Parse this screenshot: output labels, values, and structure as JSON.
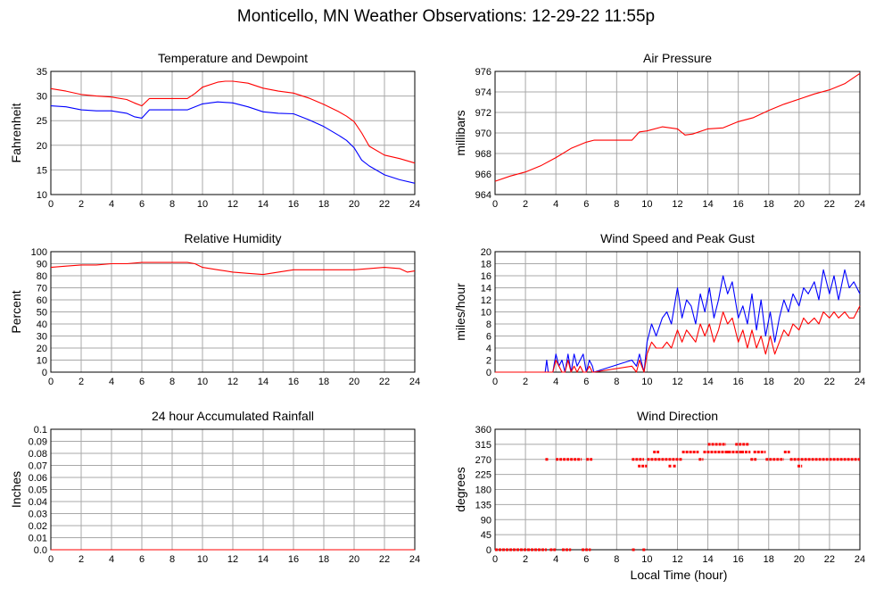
{
  "page": {
    "title": "Monticello, MN Weather Observations: 12-29-22 11:55p",
    "time_axis_label": "Local Time (hour)"
  },
  "colors": {
    "red": "#ff0000",
    "blue": "#0000ff",
    "grid": "#a8a8a8",
    "frame": "#000000"
  },
  "chart_data": [
    {
      "id": "temp",
      "type": "line",
      "title": "Temperature and Dewpoint",
      "xlabel": "",
      "ylabel": "Fahrenheit",
      "xlim": [
        0,
        24
      ],
      "ylim": [
        10,
        35
      ],
      "xticks": [
        0,
        2,
        4,
        6,
        8,
        10,
        12,
        14,
        16,
        18,
        20,
        22,
        24
      ],
      "yticks": [
        10,
        15,
        20,
        25,
        30,
        35
      ],
      "series": [
        {
          "color": "#ff0000",
          "x": [
            0,
            1,
            2,
            3,
            4,
            5,
            5.5,
            6,
            6.5,
            8,
            9,
            9.5,
            10,
            11,
            11.5,
            12,
            13,
            14,
            15,
            16,
            17,
            18,
            19,
            19.5,
            20,
            20.5,
            21,
            22,
            23,
            24
          ],
          "y": [
            31.5,
            31,
            30.3,
            30,
            29.8,
            29.3,
            28.6,
            28,
            29.5,
            29.5,
            29.5,
            30.5,
            31.8,
            32.8,
            33,
            33,
            32.6,
            31.6,
            31,
            30.6,
            29.6,
            28.3,
            26.8,
            25.9,
            24.8,
            22.5,
            19.8,
            18,
            17.3,
            16.4
          ]
        },
        {
          "color": "#0000ff",
          "x": [
            0,
            1,
            2,
            3,
            4,
            5,
            5.5,
            6,
            6.5,
            8,
            9,
            9.5,
            10,
            11,
            12,
            13,
            14,
            15,
            16,
            17,
            18,
            19,
            19.5,
            20,
            20.5,
            21,
            22,
            23,
            24
          ],
          "y": [
            28,
            27.8,
            27.2,
            27,
            27,
            26.5,
            25.8,
            25.5,
            27.2,
            27.2,
            27.2,
            27.8,
            28.4,
            28.8,
            28.6,
            27.8,
            26.8,
            26.5,
            26.4,
            25.2,
            23.8,
            22,
            21,
            19.5,
            17,
            15.8,
            14,
            13,
            12.3
          ]
        }
      ]
    },
    {
      "id": "pressure",
      "type": "line",
      "title": "Air Pressure",
      "xlabel": "",
      "ylabel": "millibars",
      "xlim": [
        0,
        24
      ],
      "ylim": [
        964,
        976
      ],
      "xticks": [
        0,
        2,
        4,
        6,
        8,
        10,
        12,
        14,
        16,
        18,
        20,
        22,
        24
      ],
      "yticks": [
        964,
        966,
        968,
        970,
        972,
        974,
        976
      ],
      "series": [
        {
          "color": "#ff0000",
          "x": [
            0,
            1,
            2,
            3,
            4,
            5,
            6,
            6.5,
            7,
            8,
            9,
            9.5,
            10,
            11,
            12,
            12.5,
            13,
            14,
            15,
            16,
            17,
            18,
            19,
            20,
            21,
            22,
            23,
            23.5,
            24
          ],
          "y": [
            965.3,
            965.8,
            966.2,
            966.8,
            967.6,
            968.5,
            969.1,
            969.3,
            969.3,
            969.3,
            969.3,
            970.1,
            970.2,
            970.6,
            970.4,
            969.8,
            969.9,
            970.4,
            970.5,
            971.1,
            971.5,
            972.2,
            972.8,
            973.3,
            973.8,
            974.2,
            974.8,
            975.3,
            975.8
          ]
        }
      ]
    },
    {
      "id": "humidity",
      "type": "line",
      "title": "Relative Humidity",
      "xlabel": "",
      "ylabel": "Percent",
      "xlim": [
        0,
        24
      ],
      "ylim": [
        0,
        100
      ],
      "xticks": [
        0,
        2,
        4,
        6,
        8,
        10,
        12,
        14,
        16,
        18,
        20,
        22,
        24
      ],
      "yticks": [
        0,
        10,
        20,
        30,
        40,
        50,
        60,
        70,
        80,
        90,
        100
      ],
      "series": [
        {
          "color": "#ff0000",
          "x": [
            0,
            1,
            2,
            3,
            4,
            5,
            6,
            7,
            8,
            9,
            9.5,
            10,
            11,
            12,
            13,
            14,
            15,
            16,
            17,
            18,
            19,
            20,
            21,
            22,
            23,
            23.5,
            24
          ],
          "y": [
            87,
            88,
            89,
            89,
            90,
            90,
            91,
            91,
            91,
            91,
            90,
            87,
            85,
            83,
            82,
            81,
            83,
            85,
            85,
            85,
            85,
            85,
            86,
            87,
            86,
            83,
            84
          ]
        }
      ]
    },
    {
      "id": "wind",
      "type": "line",
      "title": "Wind Speed and Peak Gust",
      "xlabel": "",
      "ylabel": "miles/hour",
      "xlim": [
        0,
        24
      ],
      "ylim": [
        0,
        20
      ],
      "xticks": [
        0,
        2,
        4,
        6,
        8,
        10,
        12,
        14,
        16,
        18,
        20,
        22,
        24
      ],
      "yticks": [
        0,
        2,
        4,
        6,
        8,
        10,
        12,
        14,
        16,
        18,
        20
      ],
      "series": [
        {
          "color": "#0000ff",
          "x": [
            0,
            3.3,
            3.4,
            3.5,
            3.8,
            4,
            4.2,
            4.4,
            4.6,
            4.8,
            5,
            5.2,
            5.4,
            5.6,
            5.8,
            6,
            6.2,
            6.4,
            6.5,
            9,
            9.3,
            9.5,
            9.8,
            10,
            10.3,
            10.6,
            11,
            11.3,
            11.6,
            12,
            12.3,
            12.6,
            12.9,
            13.2,
            13.5,
            13.8,
            14.1,
            14.4,
            14.7,
            15,
            15.3,
            15.6,
            16,
            16.3,
            16.6,
            16.9,
            17.2,
            17.5,
            17.8,
            18.1,
            18.4,
            18.7,
            19,
            19.3,
            19.6,
            20,
            20.3,
            20.6,
            21,
            21.3,
            21.6,
            22,
            22.3,
            22.6,
            23,
            23.3,
            23.6,
            24
          ],
          "y": [
            0,
            0,
            2,
            0,
            0,
            3,
            1,
            2,
            0,
            3,
            0,
            3,
            1,
            2,
            3,
            0,
            2,
            1,
            0,
            2,
            1,
            3,
            0,
            5,
            8,
            6,
            9,
            10,
            8,
            14,
            9,
            12,
            11,
            8,
            13,
            10,
            14,
            9,
            12,
            16,
            13,
            15,
            9,
            11,
            8,
            13,
            7,
            12,
            6,
            10,
            5,
            9,
            12,
            10,
            13,
            11,
            14,
            13,
            15,
            12,
            17,
            13,
            16,
            12,
            17,
            14,
            15,
            13
          ]
        },
        {
          "color": "#ff0000",
          "x": [
            0,
            3.3,
            3.4,
            3.5,
            3.8,
            4,
            4.2,
            4.4,
            4.6,
            4.8,
            5,
            5.2,
            5.4,
            5.6,
            5.8,
            6,
            6.2,
            6.4,
            6.5,
            9,
            9.3,
            9.5,
            9.8,
            10,
            10.3,
            10.6,
            11,
            11.3,
            11.6,
            12,
            12.3,
            12.6,
            12.9,
            13.2,
            13.5,
            13.8,
            14.1,
            14.4,
            14.7,
            15,
            15.3,
            15.6,
            16,
            16.3,
            16.6,
            16.9,
            17.2,
            17.5,
            17.8,
            18.1,
            18.4,
            18.7,
            19,
            19.3,
            19.6,
            20,
            20.3,
            20.6,
            21,
            21.3,
            21.6,
            22,
            22.3,
            22.6,
            23,
            23.3,
            23.6,
            24
          ],
          "y": [
            0,
            0,
            0,
            0,
            0,
            2,
            1,
            0,
            0,
            2,
            0,
            1,
            0,
            1,
            0,
            0,
            1,
            0,
            0,
            1,
            0,
            2,
            0,
            3,
            5,
            4,
            4,
            5,
            4,
            7,
            5,
            7,
            6,
            5,
            8,
            6,
            8,
            5,
            7,
            10,
            8,
            9,
            5,
            7,
            4,
            7,
            4,
            6,
            3,
            6,
            3,
            5,
            7,
            6,
            8,
            7,
            9,
            8,
            9,
            8,
            10,
            9,
            10,
            9,
            10,
            9,
            9,
            11
          ]
        }
      ]
    },
    {
      "id": "rain",
      "type": "line",
      "title": "24 hour Accumulated Rainfall",
      "xlabel": "",
      "ylabel": "Inches",
      "xlim": [
        0,
        24
      ],
      "ylim": [
        0,
        0.1
      ],
      "xticks": [
        0,
        2,
        4,
        6,
        8,
        10,
        12,
        14,
        16,
        18,
        20,
        22,
        24
      ],
      "yticks": [
        0,
        0.01,
        0.02,
        0.03,
        0.04,
        0.05,
        0.06,
        0.07,
        0.08,
        0.09,
        0.1
      ],
      "ytick_labels": [
        "0.0",
        "0.01",
        "0.02",
        "0.03",
        "0.04",
        "0.05",
        "0.06",
        "0.07",
        "0.08",
        "0.09",
        "0.1"
      ],
      "series": [
        {
          "color": "#ff0000",
          "x": [
            0,
            24
          ],
          "y": [
            0,
            0
          ]
        }
      ]
    },
    {
      "id": "direction",
      "type": "scatter",
      "title": "Wind Direction",
      "xlabel": "Local Time (hour)",
      "ylabel": "degrees",
      "xlim": [
        0,
        24
      ],
      "ylim": [
        0,
        360
      ],
      "xticks": [
        0,
        2,
        4,
        6,
        8,
        10,
        12,
        14,
        16,
        18,
        20,
        22,
        24
      ],
      "yticks": [
        0,
        45,
        90,
        135,
        180,
        225,
        270,
        315,
        360
      ],
      "segments": [
        {
          "x0": 0,
          "x1": 3.4,
          "y": 0
        },
        {
          "x0": 3.6,
          "x1": 4.0,
          "y": 0
        },
        {
          "x0": 4.4,
          "x1": 5.0,
          "y": 0
        },
        {
          "x0": 5.7,
          "x1": 6.3,
          "y": 0
        },
        {
          "x0": 9.7,
          "x1": 9.9,
          "y": 0
        },
        {
          "x0": 4.0,
          "x1": 5.7,
          "y": 270
        },
        {
          "x0": 6.0,
          "x1": 6.4,
          "y": 270
        },
        {
          "x0": 9.0,
          "x1": 9.8,
          "y": 270
        },
        {
          "x0": 9.4,
          "x1": 10.0,
          "y": 250
        },
        {
          "x0": 10.0,
          "x1": 12.3,
          "y": 270
        },
        {
          "x0": 10.4,
          "x1": 10.8,
          "y": 292
        },
        {
          "x0": 12.3,
          "x1": 13.4,
          "y": 292
        },
        {
          "x0": 13.4,
          "x1": 13.7,
          "y": 270
        },
        {
          "x0": 13.7,
          "x1": 16.2,
          "y": 292
        },
        {
          "x0": 14.0,
          "x1": 15.2,
          "y": 315
        },
        {
          "x0": 15.8,
          "x1": 16.7,
          "y": 315
        },
        {
          "x0": 16.2,
          "x1": 16.8,
          "y": 292
        },
        {
          "x0": 16.8,
          "x1": 17.2,
          "y": 270
        },
        {
          "x0": 17.0,
          "x1": 17.8,
          "y": 292
        },
        {
          "x0": 17.8,
          "x1": 19.0,
          "y": 270
        },
        {
          "x0": 19.0,
          "x1": 19.4,
          "y": 292
        },
        {
          "x0": 19.4,
          "x1": 24.0,
          "y": 270
        },
        {
          "x0": 19.9,
          "x1": 20.2,
          "y": 250
        }
      ],
      "points": [
        {
          "x": 3.4,
          "y": 270
        },
        {
          "x": 9.1,
          "y": 0
        },
        {
          "x": 11.5,
          "y": 250
        },
        {
          "x": 11.8,
          "y": 250
        },
        {
          "x": 15.3,
          "y": 292
        }
      ]
    }
  ]
}
